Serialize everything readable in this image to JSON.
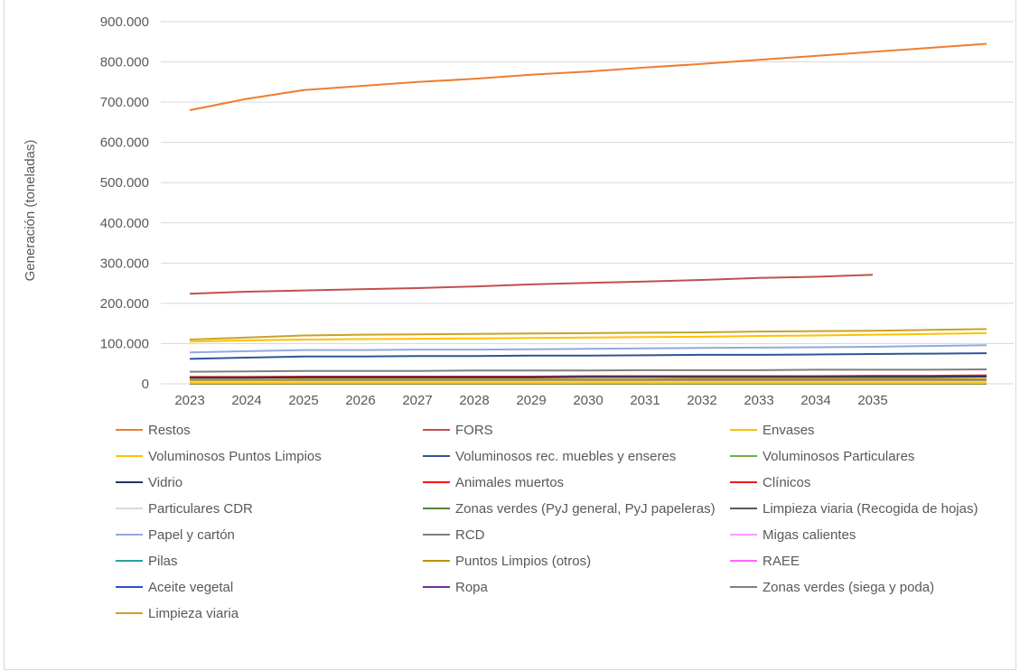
{
  "chart_data": {
    "type": "line",
    "ylabel": "Generación (toneladas)",
    "xlabel": "",
    "title": "",
    "ylim": [
      0,
      900000
    ],
    "ytick_labels": [
      "0",
      "100.000",
      "200.000",
      "300.000",
      "400.000",
      "500.000",
      "600.000",
      "700.000",
      "800.000",
      "900.000"
    ],
    "categories": [
      "2023",
      "2024",
      "2025",
      "2026",
      "2027",
      "2028",
      "2029",
      "2030",
      "2031",
      "2032",
      "2033",
      "2034",
      "2035",
      "",
      ""
    ],
    "grid": "horizontal",
    "legend_position": "bottom",
    "series": [
      {
        "name": "Restos",
        "color": "#ED7D31",
        "values": [
          680000,
          708000,
          730000,
          740000,
          750000,
          758000,
          768000,
          776000,
          786000,
          795000,
          805000,
          815000,
          825000,
          835000,
          845000
        ]
      },
      {
        "name": "FORS",
        "color": "#C0504D",
        "values": [
          224000,
          229000,
          232000,
          235000,
          238000,
          242000,
          247000,
          251000,
          254000,
          258000,
          263000,
          266000,
          271000,
          null,
          null
        ]
      },
      {
        "name": "Envases",
        "color": "#FFC000",
        "values": [
          105000,
          108000,
          110000,
          111000,
          112000,
          113000,
          114000,
          115000,
          116000,
          117000,
          119000,
          120000,
          122000,
          124000,
          126000
        ]
      },
      {
        "name": "Voluminosos Puntos Limpios",
        "color": "#FFC000",
        "values": [
          2000,
          2000,
          2000,
          2000,
          2000,
          2000,
          2000,
          2000,
          2000,
          2000,
          2000,
          2000,
          2000,
          2000,
          2000
        ]
      },
      {
        "name": "Voluminosos rec. muebles y enseres",
        "color": "#2F5597",
        "values": [
          62000,
          65000,
          68000,
          68000,
          69000,
          69000,
          70000,
          70000,
          71000,
          72000,
          72000,
          73000,
          74000,
          75000,
          76000
        ]
      },
      {
        "name": "Voluminosos Particulares",
        "color": "#70AD47",
        "values": [
          1000,
          1000,
          1000,
          1000,
          1000,
          1000,
          1000,
          1000,
          1000,
          1000,
          1000,
          1000,
          1000,
          1000,
          1000
        ]
      },
      {
        "name": "Vidrio",
        "color": "#1F3864",
        "values": [
          15000,
          15000,
          16000,
          16000,
          16000,
          16000,
          16000,
          17000,
          17000,
          17000,
          17000,
          17000,
          17000,
          17000,
          18000
        ]
      },
      {
        "name": "Animales muertos",
        "color": "#FF0000",
        "values": [
          500,
          500,
          500,
          500,
          500,
          500,
          500,
          500,
          500,
          500,
          500,
          500,
          500,
          500,
          500
        ]
      },
      {
        "name": "Clínicos",
        "color": "#E02020",
        "values": [
          17000,
          17000,
          18000,
          18000,
          18000,
          18000,
          18000,
          19000,
          19000,
          19000,
          19000,
          19000,
          20000,
          20000,
          21000
        ]
      },
      {
        "name": "Particulares CDR",
        "color": "#D9D9D9",
        "values": [
          5000,
          5000,
          5000,
          5000,
          5000,
          5000,
          5000,
          5000,
          5000,
          5000,
          5000,
          5000,
          5000,
          5000,
          5000
        ]
      },
      {
        "name": "Zonas verdes (PyJ general, PyJ papeleras)",
        "color": "#548235",
        "values": [
          4000,
          4000,
          4000,
          4000,
          4000,
          4000,
          4000,
          4000,
          4000,
          4000,
          4000,
          4000,
          4000,
          4000,
          4000
        ]
      },
      {
        "name": "Limpieza viaria (Recogida de hojas)",
        "color": "#595959",
        "values": [
          3000,
          3000,
          3000,
          3000,
          3000,
          3000,
          3000,
          3000,
          3000,
          3000,
          3000,
          3000,
          3000,
          3000,
          3000
        ]
      },
      {
        "name": "Papel y cartón",
        "color": "#8FAADC",
        "values": [
          78000,
          81000,
          84000,
          84000,
          85000,
          85000,
          86000,
          87000,
          88000,
          89000,
          90000,
          91000,
          92000,
          94000,
          96000
        ]
      },
      {
        "name": "RCD",
        "color": "#7F7F7F",
        "values": [
          30000,
          31000,
          32000,
          32000,
          32000,
          33000,
          33000,
          33000,
          34000,
          34000,
          34000,
          35000,
          35000,
          35000,
          36000
        ]
      },
      {
        "name": "Migas calientes",
        "color": "#FF99FF",
        "values": [
          1500,
          1500,
          1500,
          1500,
          1500,
          1500,
          1500,
          1500,
          1500,
          1500,
          1500,
          1500,
          1500,
          1500,
          1500
        ]
      },
      {
        "name": "Pilas",
        "color": "#2E9E9E",
        "values": [
          100,
          100,
          100,
          100,
          100,
          100,
          100,
          100,
          100,
          100,
          100,
          100,
          100,
          100,
          100
        ]
      },
      {
        "name": "Puntos Limpios (otros)",
        "color": "#BF9000",
        "values": [
          10000,
          10000,
          11000,
          11000,
          11000,
          11000,
          11000,
          11000,
          11000,
          12000,
          12000,
          12000,
          12000,
          12000,
          12000
        ]
      },
      {
        "name": "RAEE",
        "color": "#FF66FF",
        "values": [
          1200,
          1200,
          1200,
          1200,
          1200,
          1200,
          1200,
          1200,
          1200,
          1200,
          1200,
          1200,
          1200,
          1200,
          1200
        ]
      },
      {
        "name": "Aceite vegetal",
        "color": "#2E4FC9",
        "values": [
          300,
          300,
          300,
          300,
          300,
          300,
          300,
          300,
          300,
          300,
          300,
          300,
          300,
          300,
          300
        ]
      },
      {
        "name": "Ropa",
        "color": "#7030A0",
        "values": [
          2500,
          2500,
          2500,
          2500,
          2500,
          2500,
          2500,
          2500,
          2500,
          2500,
          2500,
          2500,
          2500,
          2500,
          2500
        ]
      },
      {
        "name": "Zonas verdes (siega y poda)",
        "color": "#808080",
        "values": [
          8000,
          8000,
          8000,
          8000,
          8000,
          8000,
          8000,
          8000,
          8000,
          8000,
          8000,
          8000,
          8000,
          8000,
          8000
        ]
      },
      {
        "name": "Limpieza viaria",
        "color": "#C9A227",
        "values": [
          110000,
          115000,
          120000,
          122000,
          123000,
          124000,
          125000,
          126000,
          127000,
          128000,
          130000,
          131000,
          132000,
          134000,
          136000
        ]
      }
    ]
  }
}
